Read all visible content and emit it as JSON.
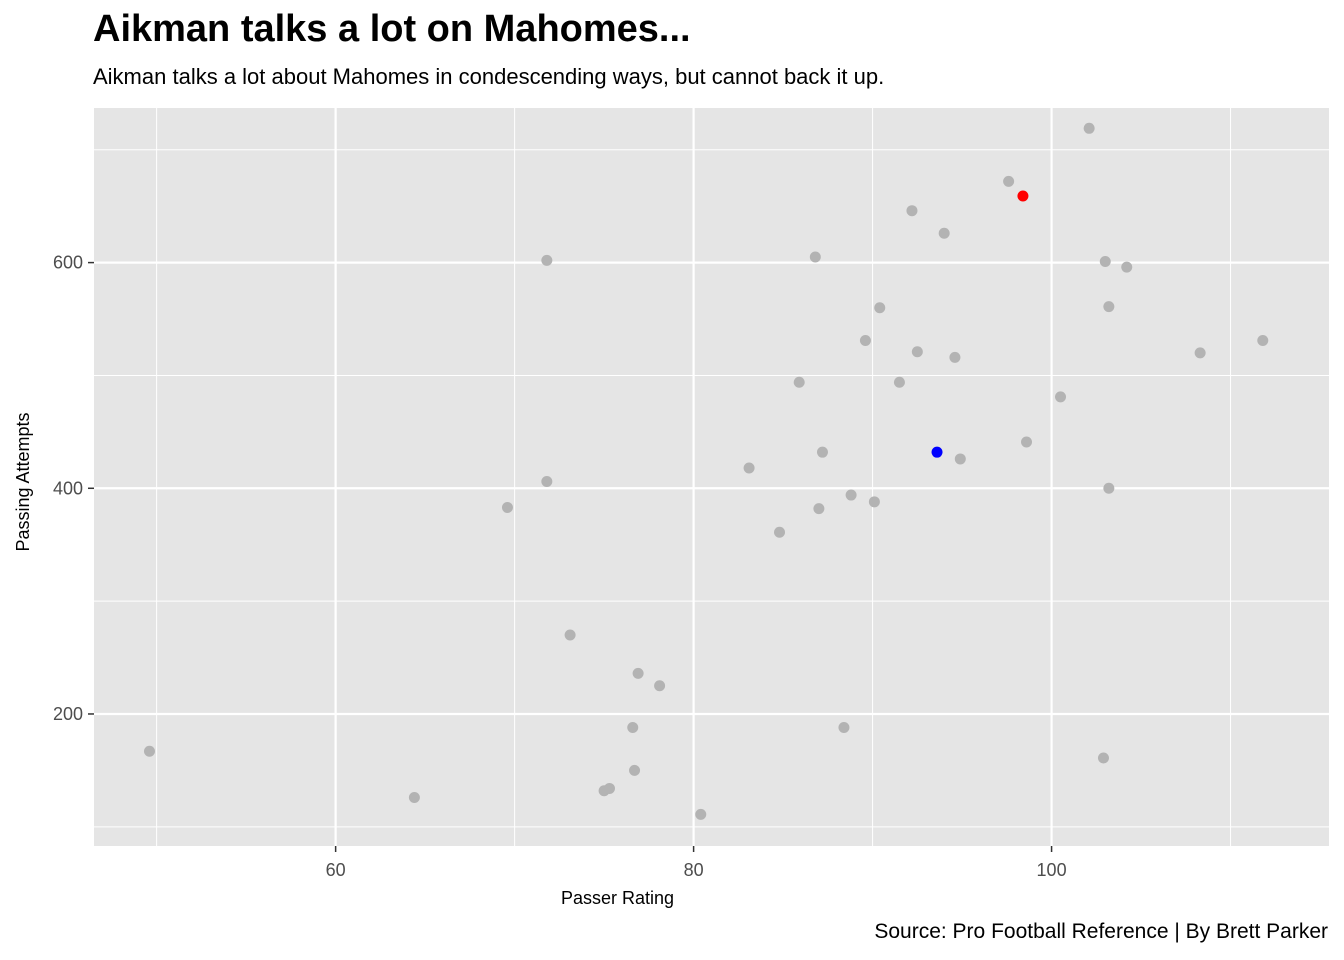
{
  "chart_data": {
    "type": "scatter",
    "title": "Aikman talks a lot on Mahomes...",
    "subtitle": "Aikman talks a lot about Mahomes in condescending ways, but cannot back it up.",
    "caption": "Source: Pro Football Reference | By Brett Parker",
    "xlabel": "Passer Rating",
    "ylabel": "Passing Attempts",
    "xlim": [
      46.5,
      115.5
    ],
    "ylim": [
      83,
      737
    ],
    "xticks": [
      60,
      80,
      100
    ],
    "yticks": [
      200,
      400,
      600
    ],
    "grid": true,
    "colors": {
      "default": "#b3b3b3",
      "highlight_red": "#ff0000",
      "highlight_blue": "#0000ff",
      "panel": "#e5e5e5",
      "grid": "#ffffff"
    },
    "points": [
      {
        "x": 49.6,
        "y": 167,
        "color": "#b3b3b3"
      },
      {
        "x": 64.4,
        "y": 126,
        "color": "#b3b3b3"
      },
      {
        "x": 69.6,
        "y": 383,
        "color": "#b3b3b3"
      },
      {
        "x": 71.8,
        "y": 602,
        "color": "#b3b3b3"
      },
      {
        "x": 71.8,
        "y": 406,
        "color": "#b3b3b3"
      },
      {
        "x": 73.1,
        "y": 270,
        "color": "#b3b3b3"
      },
      {
        "x": 75.0,
        "y": 132,
        "color": "#b3b3b3"
      },
      {
        "x": 75.3,
        "y": 134,
        "color": "#b3b3b3"
      },
      {
        "x": 76.6,
        "y": 188,
        "color": "#b3b3b3"
      },
      {
        "x": 76.7,
        "y": 150,
        "color": "#b3b3b3"
      },
      {
        "x": 76.9,
        "y": 236,
        "color": "#b3b3b3"
      },
      {
        "x": 78.1,
        "y": 225,
        "color": "#b3b3b3"
      },
      {
        "x": 80.4,
        "y": 111,
        "color": "#b3b3b3"
      },
      {
        "x": 83.1,
        "y": 418,
        "color": "#b3b3b3"
      },
      {
        "x": 84.8,
        "y": 361,
        "color": "#b3b3b3"
      },
      {
        "x": 85.9,
        "y": 494,
        "color": "#b3b3b3"
      },
      {
        "x": 86.8,
        "y": 605,
        "color": "#b3b3b3"
      },
      {
        "x": 87.0,
        "y": 382,
        "color": "#b3b3b3"
      },
      {
        "x": 87.2,
        "y": 432,
        "color": "#b3b3b3"
      },
      {
        "x": 88.4,
        "y": 188,
        "color": "#b3b3b3"
      },
      {
        "x": 88.8,
        "y": 394,
        "color": "#b3b3b3"
      },
      {
        "x": 89.6,
        "y": 531,
        "color": "#b3b3b3"
      },
      {
        "x": 90.1,
        "y": 388,
        "color": "#b3b3b3"
      },
      {
        "x": 90.4,
        "y": 560,
        "color": "#b3b3b3"
      },
      {
        "x": 91.5,
        "y": 494,
        "color": "#b3b3b3"
      },
      {
        "x": 92.2,
        "y": 646,
        "color": "#b3b3b3"
      },
      {
        "x": 92.5,
        "y": 521,
        "color": "#b3b3b3"
      },
      {
        "x": 93.6,
        "y": 432,
        "color": "#0000ff"
      },
      {
        "x": 94.0,
        "y": 626,
        "color": "#b3b3b3"
      },
      {
        "x": 94.6,
        "y": 516,
        "color": "#b3b3b3"
      },
      {
        "x": 94.9,
        "y": 426,
        "color": "#b3b3b3"
      },
      {
        "x": 97.6,
        "y": 672,
        "color": "#b3b3b3"
      },
      {
        "x": 98.4,
        "y": 659,
        "color": "#ff0000"
      },
      {
        "x": 98.6,
        "y": 441,
        "color": "#b3b3b3"
      },
      {
        "x": 100.5,
        "y": 481,
        "color": "#b3b3b3"
      },
      {
        "x": 102.1,
        "y": 719,
        "color": "#b3b3b3"
      },
      {
        "x": 102.9,
        "y": 161,
        "color": "#b3b3b3"
      },
      {
        "x": 103.0,
        "y": 601,
        "color": "#b3b3b3"
      },
      {
        "x": 103.2,
        "y": 561,
        "color": "#b3b3b3"
      },
      {
        "x": 103.2,
        "y": 400,
        "color": "#b3b3b3"
      },
      {
        "x": 104.2,
        "y": 596,
        "color": "#b3b3b3"
      },
      {
        "x": 108.3,
        "y": 520,
        "color": "#b3b3b3"
      },
      {
        "x": 111.8,
        "y": 531,
        "color": "#b3b3b3"
      }
    ]
  }
}
